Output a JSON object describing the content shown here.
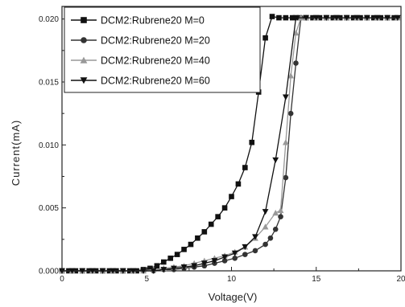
{
  "chart_data": {
    "type": "line",
    "title": "",
    "xlabel": "Voltage(V)",
    "ylabel": "Current(mA)",
    "xlim": [
      0,
      20
    ],
    "ylim": [
      0,
      0.021
    ],
    "x_ticks": [
      0,
      5,
      10,
      15,
      20
    ],
    "x_tick_labels": [
      "0",
      "5",
      "10",
      "15",
      "20"
    ],
    "y_ticks": [
      0.0,
      0.005,
      0.01,
      0.015,
      0.02
    ],
    "y_tick_labels": [
      "0.000",
      "0.005",
      "0.010",
      "0.015",
      "0.020"
    ],
    "grid": false,
    "legend": "top-left",
    "series": [
      {
        "name": "DCM2:Rubrene20 M=0",
        "marker": "square",
        "color": "#111111",
        "x": [
          0,
          0.4,
          0.8,
          1.2,
          1.6,
          2.0,
          2.4,
          2.8,
          3.2,
          3.6,
          4.0,
          4.4,
          4.8,
          5.2,
          5.6,
          6.0,
          6.4,
          6.8,
          7.2,
          7.6,
          8.0,
          8.4,
          8.8,
          9.2,
          9.6,
          10.0,
          10.4,
          10.8,
          11.2,
          11.6,
          12.0,
          12.4,
          12.8,
          13.2,
          13.6,
          14.0,
          14.4,
          14.8,
          15.2,
          15.6,
          16.0,
          16.4,
          16.8,
          17.2,
          17.6,
          18.0,
          18.4,
          18.8,
          19.2,
          19.6
        ],
        "y": [
          0,
          0,
          0,
          0,
          0,
          0,
          0,
          0,
          0,
          0,
          0,
          0,
          0.0001,
          0.0002,
          0.0004,
          0.0007,
          0.001,
          0.0013,
          0.0017,
          0.0021,
          0.0026,
          0.0031,
          0.0037,
          0.0043,
          0.005,
          0.0059,
          0.0069,
          0.0082,
          0.0102,
          0.0142,
          0.0185,
          0.0202,
          0.0201,
          0.0201,
          0.0201,
          0.0201,
          0.0201,
          0.0201,
          0.0201,
          0.0201,
          0.0201,
          0.0201,
          0.0201,
          0.0201,
          0.0201,
          0.0201,
          0.0201,
          0.0201,
          0.0201,
          0.0201
        ]
      },
      {
        "name": "DCM2:Rubrene20 M=20",
        "marker": "circle",
        "color": "#333333",
        "x": [
          0,
          0.6,
          1.2,
          1.8,
          2.4,
          3.0,
          3.6,
          4.2,
          4.8,
          5.4,
          6.0,
          6.6,
          7.2,
          7.8,
          8.4,
          9.0,
          9.6,
          10.2,
          10.8,
          11.4,
          12.0,
          12.3,
          12.6,
          12.9,
          13.2,
          13.5,
          13.8,
          14.1,
          14.4,
          15.0,
          15.6,
          16.2,
          16.8,
          17.4,
          18.0,
          18.6,
          19.2,
          19.8
        ],
        "y": [
          0,
          0,
          0,
          0,
          0,
          0,
          0,
          0,
          0,
          0,
          0.0001,
          0.0001,
          0.0002,
          0.0003,
          0.0004,
          0.0006,
          0.0008,
          0.001,
          0.0013,
          0.0016,
          0.0021,
          0.0026,
          0.0033,
          0.0043,
          0.0074,
          0.0125,
          0.0165,
          0.0201,
          0.0201,
          0.0201,
          0.0201,
          0.0201,
          0.0201,
          0.0201,
          0.0201,
          0.0201,
          0.0201,
          0.0201
        ]
      },
      {
        "name": "DCM2:Rubrene20 M=40",
        "marker": "triangle-up",
        "color": "#999999",
        "x": [
          0,
          0.6,
          1.2,
          1.8,
          2.4,
          3.0,
          3.6,
          4.2,
          4.8,
          5.4,
          6.0,
          6.6,
          7.2,
          7.8,
          8.4,
          9.0,
          9.6,
          10.2,
          10.8,
          11.4,
          12.0,
          12.6,
          12.9,
          13.2,
          13.5,
          13.8,
          14.1,
          14.4,
          15.0,
          15.6,
          16.2,
          16.8,
          17.4,
          18.0,
          18.6,
          19.2,
          19.8
        ],
        "y": [
          0,
          0,
          0,
          0,
          0,
          0,
          0,
          0,
          0,
          0.0001,
          0.0002,
          0.0003,
          0.0004,
          0.0006,
          0.0008,
          0.001,
          0.0012,
          0.0015,
          0.0019,
          0.0026,
          0.0035,
          0.0046,
          0.0048,
          0.0102,
          0.0155,
          0.0189,
          0.0201,
          0.0201,
          0.0201,
          0.0201,
          0.0201,
          0.0201,
          0.0201,
          0.0201,
          0.0201,
          0.0201,
          0.0201
        ]
      },
      {
        "name": "DCM2:Rubrene20 M=60",
        "marker": "triangle-down",
        "color": "#111111",
        "x": [
          0,
          0.6,
          1.2,
          1.8,
          2.4,
          3.0,
          3.6,
          4.2,
          4.8,
          5.4,
          6.0,
          6.6,
          7.2,
          7.8,
          8.4,
          9.0,
          9.6,
          10.2,
          10.8,
          11.4,
          12.0,
          12.6,
          13.2,
          13.8,
          14.4,
          15.0,
          15.6,
          16.2,
          16.8,
          17.4,
          18.0,
          18.6,
          19.2,
          19.8
        ],
        "y": [
          0,
          0,
          0,
          0,
          0,
          0,
          0,
          0,
          0,
          0,
          0.0001,
          0.0002,
          0.0003,
          0.0004,
          0.0006,
          0.0008,
          0.0011,
          0.0014,
          0.0019,
          0.0027,
          0.0047,
          0.0088,
          0.0138,
          0.0201,
          0.0201,
          0.0201,
          0.0201,
          0.0201,
          0.0201,
          0.0201,
          0.0201,
          0.0201,
          0.0201,
          0.0201
        ]
      }
    ]
  }
}
